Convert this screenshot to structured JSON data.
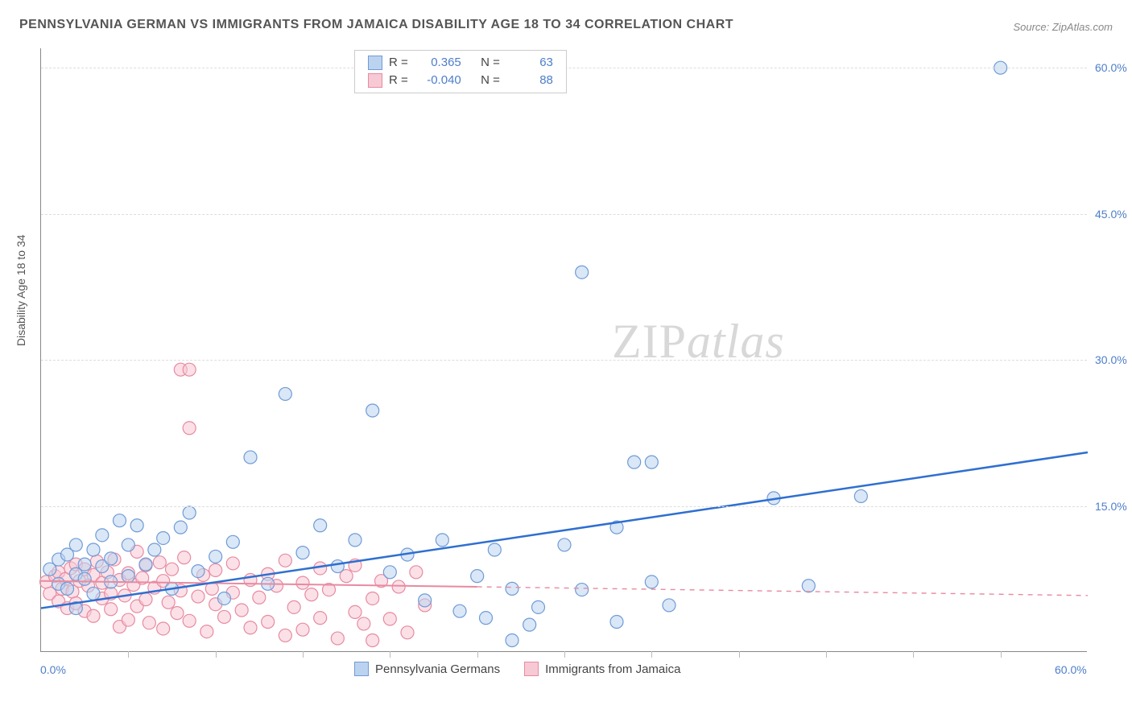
{
  "title": "PENNSYLVANIA GERMAN VS IMMIGRANTS FROM JAMAICA DISABILITY AGE 18 TO 34 CORRELATION CHART",
  "source": "Source: ZipAtlas.com",
  "y_axis_label": "Disability Age 18 to 34",
  "watermark_parts": {
    "zip": "ZIP",
    "atlas": "atlas"
  },
  "colors": {
    "series1_fill": "#bcd3ef",
    "series1_stroke": "#6f9bd8",
    "series2_fill": "#f7c9d4",
    "series2_stroke": "#e88aa1",
    "line1": "#2f6fd0",
    "line2": "#e88aa1",
    "text": "#555555",
    "tick_text": "#4d7ec9",
    "grid": "#dddddd",
    "axis": "#888888",
    "background": "#ffffff"
  },
  "xlim": [
    0,
    60
  ],
  "ylim": [
    0,
    62
  ],
  "y_ticks": [
    {
      "v": 15,
      "label": "15.0%"
    },
    {
      "v": 30,
      "label": "30.0%"
    },
    {
      "v": 45,
      "label": "45.0%"
    },
    {
      "v": 60,
      "label": "60.0%"
    }
  ],
  "x_ticks_minor": [
    5,
    10,
    15,
    20,
    25,
    30,
    35,
    40,
    45,
    50,
    55
  ],
  "x_tick_labels": [
    {
      "v": 0,
      "label": "0.0%"
    },
    {
      "v": 60,
      "label": "60.0%"
    }
  ],
  "legend_top": [
    {
      "swatch_fill": "#bcd3ef",
      "swatch_stroke": "#6f9bd8",
      "r_label": "R =",
      "r": "0.365",
      "n_label": "N =",
      "n": "63"
    },
    {
      "swatch_fill": "#f7c9d4",
      "swatch_stroke": "#e88aa1",
      "r_label": "R =",
      "r": "-0.040",
      "n_label": "N =",
      "n": "88"
    }
  ],
  "legend_bottom": [
    {
      "swatch_fill": "#bcd3ef",
      "swatch_stroke": "#6f9bd8",
      "label": "Pennsylvania Germans"
    },
    {
      "swatch_fill": "#f7c9d4",
      "swatch_stroke": "#e88aa1",
      "label": "Immigrants from Jamaica"
    }
  ],
  "marker_radius": 8,
  "marker_opacity": 0.55,
  "trend_lines": {
    "series1": {
      "x1": 0,
      "y1": 4.5,
      "x2": 60,
      "y2": 20.5,
      "width": 2.5,
      "dash": ""
    },
    "series2_solid": {
      "x1": 0,
      "y1": 7.3,
      "x2": 25,
      "y2": 6.7,
      "width": 2,
      "dash": ""
    },
    "series2_dash": {
      "x1": 25,
      "y1": 6.7,
      "x2": 60,
      "y2": 5.8,
      "width": 1.4,
      "dash": "6,6"
    }
  },
  "series1_points": [
    [
      0.5,
      8.5
    ],
    [
      1,
      9.5
    ],
    [
      1,
      7
    ],
    [
      1.5,
      10
    ],
    [
      1.5,
      6.5
    ],
    [
      2,
      8
    ],
    [
      2,
      11
    ],
    [
      2,
      4.5
    ],
    [
      2.5,
      9
    ],
    [
      2.5,
      7.5
    ],
    [
      3,
      10.5
    ],
    [
      3,
      6
    ],
    [
      3.5,
      8.8
    ],
    [
      3.5,
      12
    ],
    [
      4,
      7.2
    ],
    [
      4,
      9.6
    ],
    [
      4.5,
      13.5
    ],
    [
      5,
      11
    ],
    [
      5,
      7.8
    ],
    [
      6,
      9
    ],
    [
      6.5,
      10.5
    ],
    [
      7,
      11.7
    ],
    [
      7.5,
      6.5
    ],
    [
      8,
      12.8
    ],
    [
      9,
      8.3
    ],
    [
      10,
      9.8
    ],
    [
      10.5,
      5.5
    ],
    [
      11,
      11.3
    ],
    [
      12,
      20
    ],
    [
      13,
      7
    ],
    [
      14,
      26.5
    ],
    [
      15,
      10.2
    ],
    [
      16,
      13
    ],
    [
      17,
      8.8
    ],
    [
      18,
      11.5
    ],
    [
      19,
      24.8
    ],
    [
      20,
      8.2
    ],
    [
      21,
      10
    ],
    [
      22,
      5.3
    ],
    [
      23,
      11.5
    ],
    [
      24,
      4.2
    ],
    [
      25,
      7.8
    ],
    [
      25.5,
      3.5
    ],
    [
      26,
      10.5
    ],
    [
      27,
      6.5
    ],
    [
      27,
      1.2
    ],
    [
      28,
      2.8
    ],
    [
      28.5,
      4.6
    ],
    [
      30,
      11
    ],
    [
      31,
      39
    ],
    [
      31,
      6.4
    ],
    [
      33,
      3.1
    ],
    [
      33,
      12.8
    ],
    [
      34,
      19.5
    ],
    [
      35,
      19.5
    ],
    [
      35,
      7.2
    ],
    [
      36,
      4.8
    ],
    [
      42,
      15.8
    ],
    [
      44,
      6.8
    ],
    [
      47,
      16
    ],
    [
      55,
      60
    ],
    [
      5.5,
      13
    ],
    [
      8.5,
      14.3
    ]
  ],
  "series2_points": [
    [
      0.3,
      7.2
    ],
    [
      0.5,
      6
    ],
    [
      0.8,
      7.8
    ],
    [
      1,
      5.2
    ],
    [
      1,
      8.2
    ],
    [
      1.2,
      6.5
    ],
    [
      1.4,
      7.5
    ],
    [
      1.5,
      4.5
    ],
    [
      1.7,
      8.6
    ],
    [
      1.8,
      6.2
    ],
    [
      2,
      9
    ],
    [
      2,
      5
    ],
    [
      2.2,
      7.3
    ],
    [
      2.5,
      8.5
    ],
    [
      2.5,
      4.2
    ],
    [
      2.7,
      6.8
    ],
    [
      3,
      7.9
    ],
    [
      3,
      3.7
    ],
    [
      3.2,
      9.3
    ],
    [
      3.5,
      5.5
    ],
    [
      3.5,
      7.1
    ],
    [
      3.8,
      8.2
    ],
    [
      4,
      6
    ],
    [
      4,
      4.4
    ],
    [
      4.2,
      9.5
    ],
    [
      4.5,
      7.4
    ],
    [
      4.5,
      2.6
    ],
    [
      4.8,
      5.8
    ],
    [
      5,
      8.1
    ],
    [
      5,
      3.3
    ],
    [
      5.3,
      6.9
    ],
    [
      5.5,
      10.3
    ],
    [
      5.5,
      4.7
    ],
    [
      5.8,
      7.6
    ],
    [
      6,
      5.4
    ],
    [
      6,
      8.9
    ],
    [
      6.2,
      3
    ],
    [
      6.5,
      6.6
    ],
    [
      6.8,
      9.2
    ],
    [
      7,
      2.4
    ],
    [
      7,
      7.3
    ],
    [
      7.3,
      5.1
    ],
    [
      7.5,
      8.5
    ],
    [
      7.8,
      4
    ],
    [
      8,
      6.3
    ],
    [
      8,
      29
    ],
    [
      8.5,
      29
    ],
    [
      8.2,
      9.7
    ],
    [
      8.5,
      23
    ],
    [
      8.5,
      3.2
    ],
    [
      9,
      5.7
    ],
    [
      9.3,
      7.9
    ],
    [
      9.5,
      2.1
    ],
    [
      9.8,
      6.5
    ],
    [
      10,
      4.9
    ],
    [
      10,
      8.4
    ],
    [
      10.5,
      3.6
    ],
    [
      11,
      6.1
    ],
    [
      11,
      9.1
    ],
    [
      11.5,
      4.3
    ],
    [
      12,
      7.4
    ],
    [
      12,
      2.5
    ],
    [
      12.5,
      5.6
    ],
    [
      13,
      8
    ],
    [
      13,
      3.1
    ],
    [
      13.5,
      6.8
    ],
    [
      14,
      1.7
    ],
    [
      14,
      9.4
    ],
    [
      14.5,
      4.6
    ],
    [
      15,
      7.1
    ],
    [
      15,
      2.3
    ],
    [
      15.5,
      5.9
    ],
    [
      16,
      8.6
    ],
    [
      16,
      3.5
    ],
    [
      16.5,
      6.4
    ],
    [
      17,
      1.4
    ],
    [
      17.5,
      7.8
    ],
    [
      18,
      4.1
    ],
    [
      18,
      8.9
    ],
    [
      18.5,
      2.9
    ],
    [
      19,
      5.5
    ],
    [
      19.5,
      7.3
    ],
    [
      20,
      3.4
    ],
    [
      20.5,
      6.7
    ],
    [
      21,
      2
    ],
    [
      21.5,
      8.2
    ],
    [
      22,
      4.8
    ],
    [
      19,
      1.2
    ]
  ]
}
